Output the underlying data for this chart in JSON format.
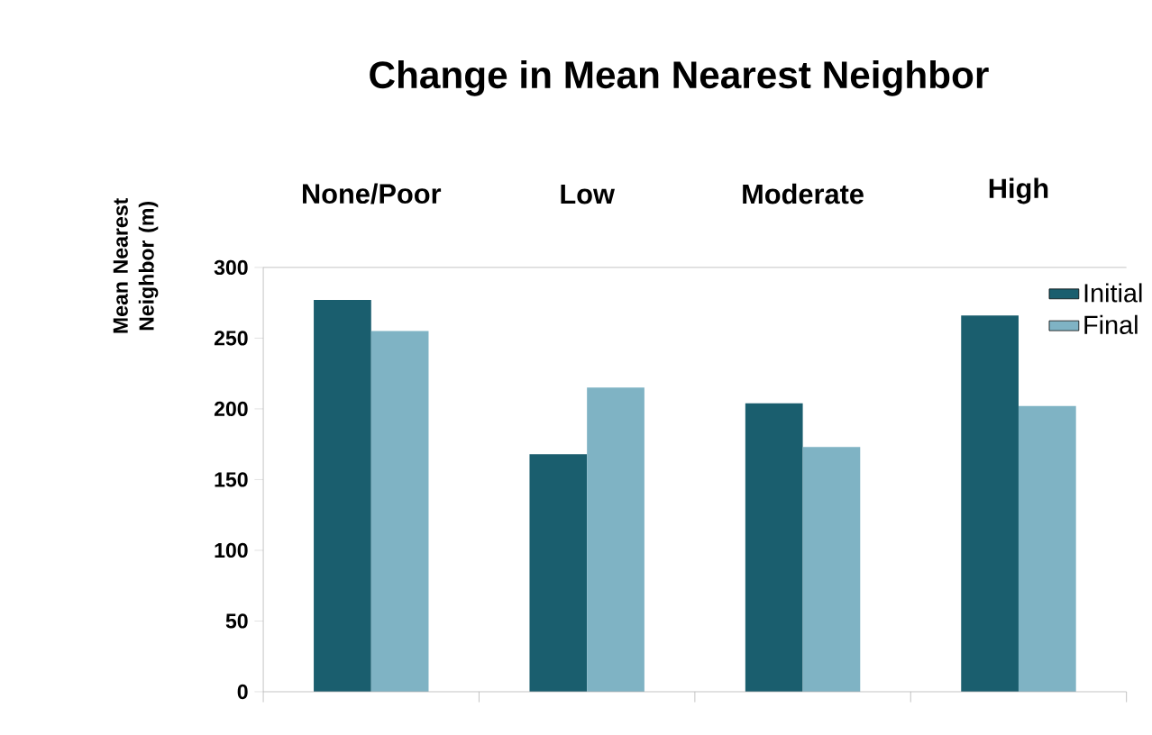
{
  "chart_data": {
    "type": "bar",
    "title": "Change in Mean Nearest Neighbor",
    "ylabel": "Mean Nearest Neighbor (m)",
    "categories": [
      "None/Poor",
      "Low",
      "Moderate",
      "High"
    ],
    "series": [
      {
        "name": "Initial",
        "color": "#1a5e6e",
        "values": [
          277,
          168,
          204,
          266
        ]
      },
      {
        "name": "Final",
        "color": "#7fb3c4",
        "values": [
          255,
          215,
          173,
          202
        ]
      }
    ],
    "ylim": [
      0,
      300
    ],
    "yticks": [
      0,
      50,
      100,
      150,
      200,
      250,
      300
    ],
    "grid": false,
    "legend": "top right"
  }
}
